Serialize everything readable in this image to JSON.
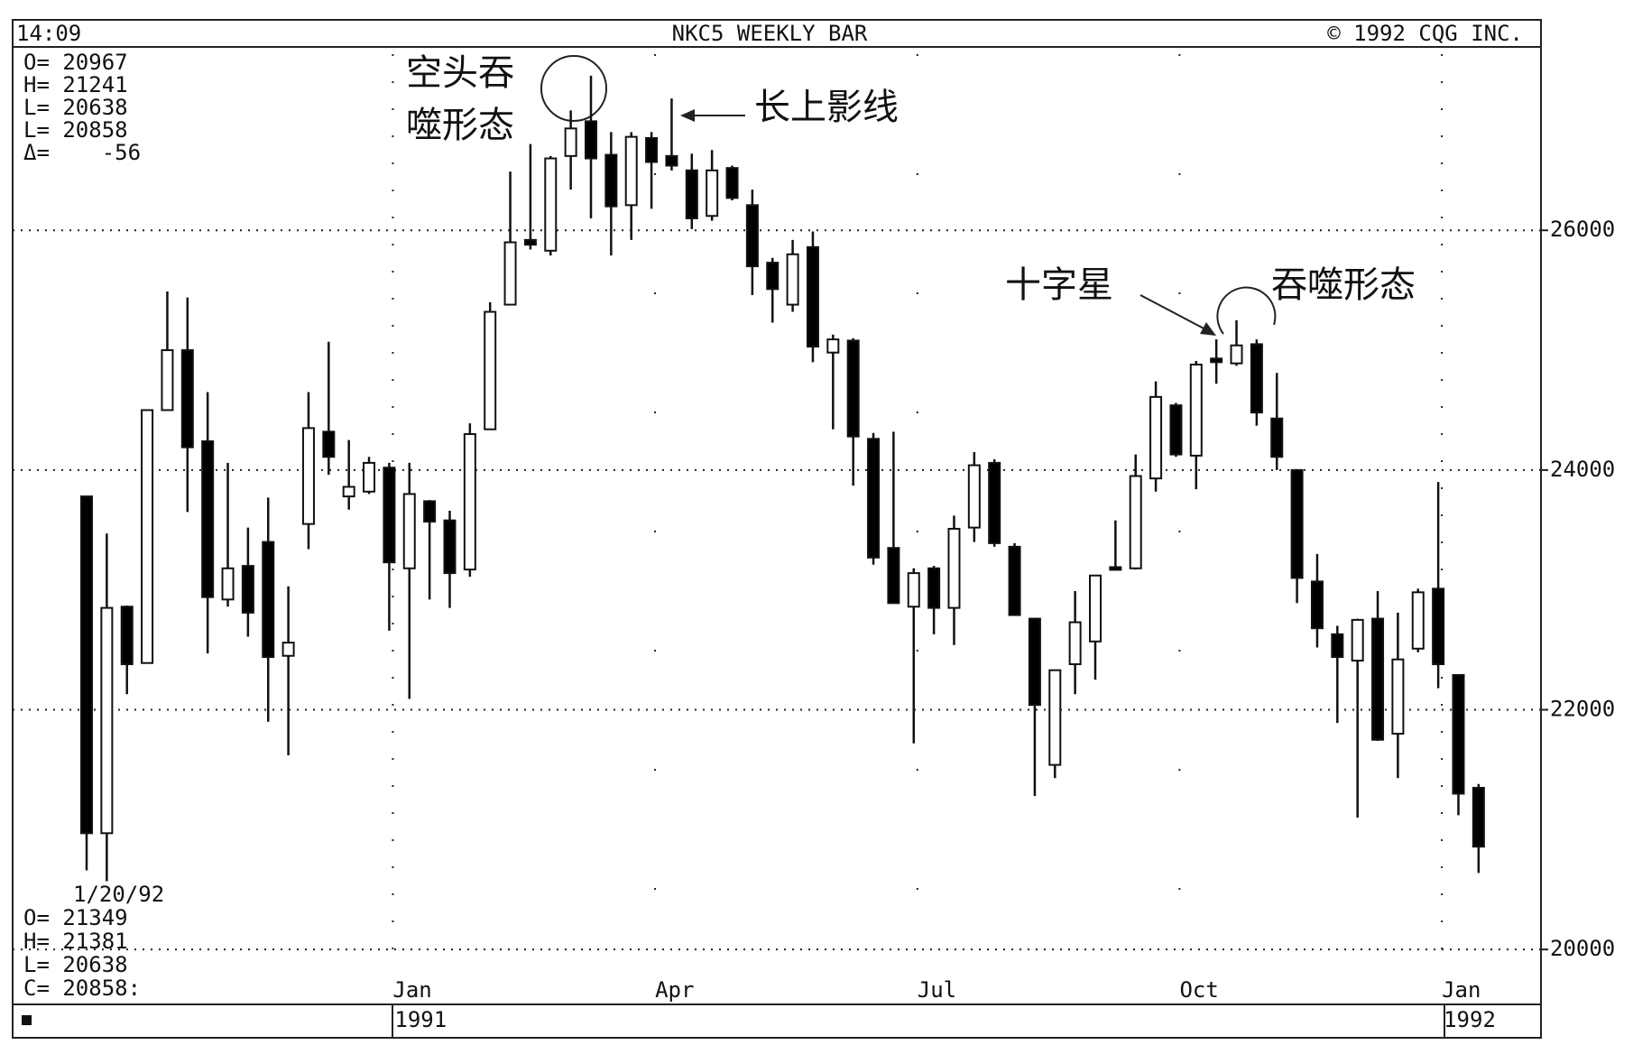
{
  "chart_data": {
    "type": "candlestick",
    "title": "NKC5 WEEKLY BAR",
    "header_left": "14:09",
    "header_right": "© 1992 CQG INC.",
    "info_top": [
      "O= 20967",
      "H= 21241",
      "L= 20638",
      "L= 20858",
      "Δ=    -56"
    ],
    "info_bottom": [
      "1/20/92",
      "O= 21349",
      "H= 21381",
      "L= 20638",
      "C= 20858:"
    ],
    "annotations": [
      "空头吞",
      "噬形态",
      "长上影线",
      "十字星",
      "吞噬形态"
    ],
    "categories": [
      null,
      null,
      null,
      null,
      null,
      null,
      null,
      null,
      null,
      null,
      null,
      null,
      null,
      null,
      null,
      "Jan",
      null,
      null,
      null,
      null,
      null,
      null,
      null,
      null,
      null,
      null,
      null,
      null,
      "Apr",
      null,
      null,
      null,
      null,
      null,
      null,
      null,
      null,
      null,
      null,
      null,
      null,
      "Jul",
      null,
      null,
      null,
      null,
      null,
      null,
      null,
      null,
      null,
      null,
      null,
      null,
      "Oct",
      null,
      null,
      null,
      null,
      null,
      null,
      null,
      null,
      null,
      null,
      null,
      null,
      "Jan",
      null,
      null
    ],
    "years": [
      "1991",
      "1992"
    ],
    "open": [
      23780,
      20970,
      22860,
      22390,
      24500,
      25000,
      24240,
      22920,
      23200,
      23400,
      22450,
      23550,
      24320,
      23780,
      23820,
      24020,
      23180,
      23740,
      23580,
      23170,
      24340,
      25380,
      25920,
      25830,
      26620,
      26910,
      26630,
      26210,
      26770,
      26620,
      26500,
      26120,
      26520,
      26210,
      25730,
      25380,
      25860,
      24980,
      25080,
      24260,
      23350,
      22860,
      23180,
      22850,
      23520,
      24060,
      23360,
      22760,
      21540,
      22380,
      22570,
      23190,
      23180,
      23930,
      24540,
      24120,
      24930,
      24890,
      25050,
      24430,
      24000,
      23070,
      22630,
      22410,
      22760,
      21800,
      22510,
      23010,
      22290,
      21349
    ],
    "high": [
      23780,
      23470,
      22870,
      24500,
      25490,
      25440,
      24650,
      24060,
      23520,
      23770,
      23030,
      24650,
      25070,
      24250,
      24110,
      24060,
      24060,
      23750,
      23660,
      24390,
      25400,
      26490,
      26720,
      26620,
      27000,
      27290,
      26820,
      26820,
      26820,
      27100,
      26640,
      26670,
      26540,
      26340,
      25770,
      25920,
      25990,
      25130,
      25100,
      24310,
      24320,
      23180,
      23200,
      23620,
      24150,
      24090,
      23390,
      22760,
      22330,
      22990,
      23120,
      23580,
      24130,
      24740,
      24560,
      24910,
      25090,
      25250,
      25090,
      24810,
      24000,
      23300,
      22700,
      22760,
      22990,
      22810,
      23010,
      23900,
      22290,
      21381
    ],
    "low": [
      20660,
      20570,
      22130,
      22390,
      24500,
      23650,
      22470,
      22860,
      22610,
      21900,
      21620,
      23340,
      23960,
      23670,
      23800,
      22660,
      22090,
      22920,
      22850,
      23110,
      24340,
      25380,
      25840,
      25790,
      26340,
      26100,
      25790,
      25920,
      26180,
      26500,
      26010,
      26080,
      26250,
      25460,
      25230,
      25320,
      24900,
      24340,
      23870,
      23210,
      22890,
      21720,
      22630,
      22540,
      23400,
      23360,
      22790,
      21280,
      21430,
      22130,
      22250,
      23170,
      23170,
      23820,
      24110,
      23840,
      24720,
      24870,
      24370,
      24000,
      22890,
      22520,
      21890,
      21100,
      21740,
      21430,
      22480,
      22180,
      21120,
      20638
    ],
    "close": [
      20970,
      22850,
      22380,
      24500,
      25000,
      24190,
      22940,
      23180,
      22810,
      22440,
      22560,
      24350,
      24110,
      23860,
      24060,
      23230,
      23800,
      23570,
      23140,
      24300,
      25320,
      25900,
      25880,
      26600,
      26850,
      26600,
      26200,
      26780,
      26570,
      26540,
      26100,
      26500,
      26270,
      25700,
      25510,
      25800,
      25030,
      25090,
      24280,
      23270,
      22890,
      23140,
      22850,
      23510,
      24040,
      23390,
      22790,
      22040,
      22330,
      22730,
      23120,
      23170,
      23950,
      24610,
      24130,
      24880,
      24900,
      25040,
      24480,
      24110,
      23100,
      22680,
      22440,
      22750,
      21750,
      22420,
      22980,
      22380,
      21300,
      20858
    ],
    "up_color": "#ffffff",
    "down_color": "#000000",
    "ylim": [
      19700,
      27500
    ],
    "yticks": [
      20000,
      22000,
      24000,
      26000
    ],
    "grid": true
  }
}
